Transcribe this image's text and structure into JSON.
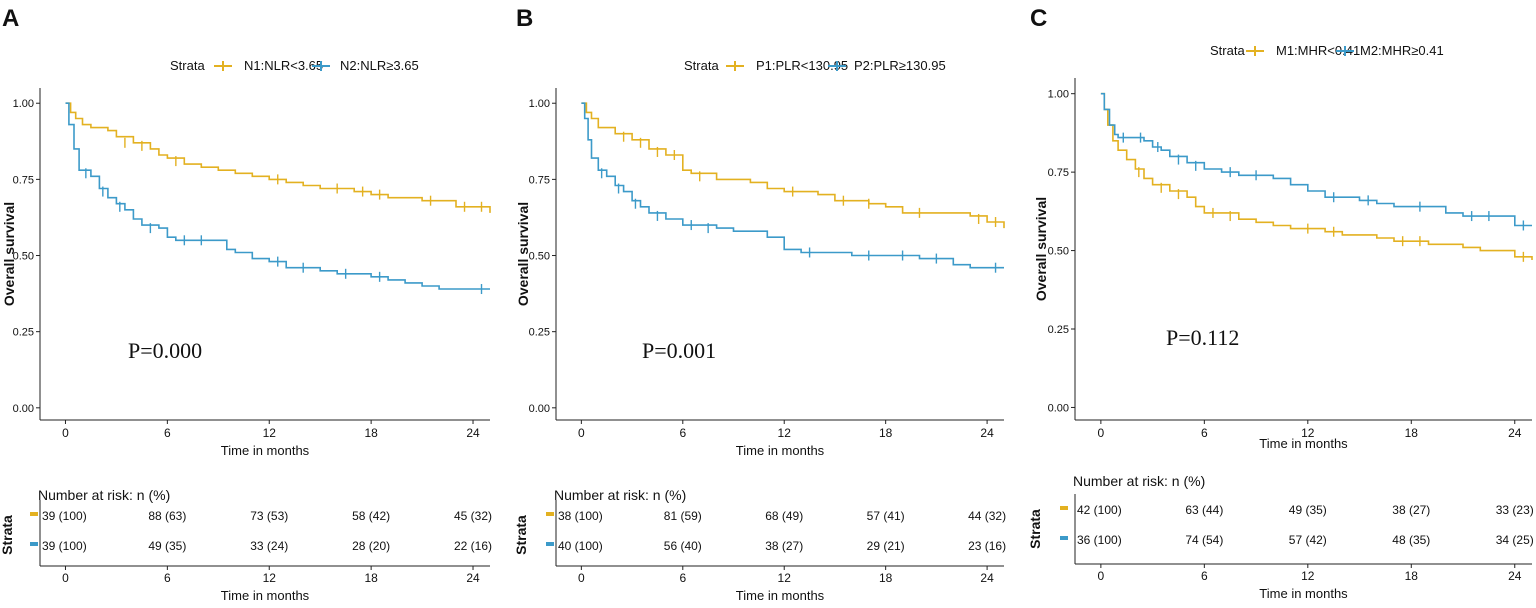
{
  "chart_data": [
    {
      "type": "line",
      "panel_label": "A",
      "title": "",
      "xlabel": "Time in months",
      "ylabel": "Overall survival",
      "xlim": [
        -1.5,
        25
      ],
      "ylim": [
        -0.04,
        1.05
      ],
      "x_ticks": [
        "0",
        "6",
        "12",
        "18",
        "24"
      ],
      "y_ticks": [
        "0.00",
        "0.25",
        "0.50",
        "0.75",
        "1.00"
      ],
      "legend_title": "Strata",
      "annotation": "P=0.000",
      "colors": {
        "series1": "#E3B121",
        "series2": "#3C9AC9"
      },
      "series": [
        {
          "name": "N1:NLR<3.65",
          "points": [
            [
              0,
              1.0
            ],
            [
              0.3,
              0.97
            ],
            [
              0.6,
              0.95
            ],
            [
              1,
              0.93
            ],
            [
              1.5,
              0.92
            ],
            [
              2.5,
              0.91
            ],
            [
              3,
              0.89
            ],
            [
              4,
              0.87
            ],
            [
              5,
              0.85
            ],
            [
              5.5,
              0.83
            ],
            [
              6,
              0.82
            ],
            [
              7,
              0.8
            ],
            [
              8,
              0.79
            ],
            [
              9,
              0.78
            ],
            [
              10,
              0.77
            ],
            [
              11,
              0.76
            ],
            [
              12,
              0.75
            ],
            [
              13,
              0.74
            ],
            [
              14,
              0.73
            ],
            [
              15,
              0.72
            ],
            [
              17,
              0.71
            ],
            [
              18,
              0.7
            ],
            [
              19,
              0.69
            ],
            [
              21,
              0.68
            ],
            [
              22,
              0.68
            ],
            [
              23,
              0.66
            ],
            [
              24,
              0.66
            ],
            [
              25,
              0.64
            ]
          ],
          "censors": [
            [
              3.5,
              0.87
            ],
            [
              4.5,
              0.86
            ],
            [
              6.5,
              0.81
            ],
            [
              12.5,
              0.75
            ],
            [
              16,
              0.72
            ],
            [
              17.5,
              0.71
            ],
            [
              18.5,
              0.7
            ],
            [
              21.5,
              0.68
            ],
            [
              23.5,
              0.66
            ],
            [
              24.5,
              0.66
            ]
          ]
        },
        {
          "name": "N2:NLR≥3.65",
          "points": [
            [
              0,
              1.0
            ],
            [
              0.2,
              0.93
            ],
            [
              0.5,
              0.85
            ],
            [
              0.8,
              0.78
            ],
            [
              1.5,
              0.76
            ],
            [
              2,
              0.72
            ],
            [
              2.5,
              0.69
            ],
            [
              3,
              0.67
            ],
            [
              3.5,
              0.65
            ],
            [
              4,
              0.62
            ],
            [
              4.5,
              0.6
            ],
            [
              5.5,
              0.59
            ],
            [
              6,
              0.56
            ],
            [
              6.5,
              0.55
            ],
            [
              9.5,
              0.52
            ],
            [
              10,
              0.51
            ],
            [
              11,
              0.49
            ],
            [
              12,
              0.48
            ],
            [
              13,
              0.46
            ],
            [
              15,
              0.45
            ],
            [
              16,
              0.44
            ],
            [
              18,
              0.43
            ],
            [
              19,
              0.42
            ],
            [
              20,
              0.41
            ],
            [
              21,
              0.4
            ],
            [
              22,
              0.39
            ],
            [
              25,
              0.39
            ]
          ],
          "censors": [
            [
              1.2,
              0.77
            ],
            [
              2.2,
              0.71
            ],
            [
              3.2,
              0.66
            ],
            [
              5,
              0.59
            ],
            [
              7,
              0.55
            ],
            [
              8,
              0.55
            ],
            [
              12.5,
              0.48
            ],
            [
              14,
              0.46
            ],
            [
              16.5,
              0.44
            ],
            [
              18.5,
              0.43
            ],
            [
              24.5,
              0.39
            ]
          ]
        }
      ],
      "risk_table": {
        "title": "Number at risk: n (%)",
        "side_label": "Strata",
        "rows": [
          [
            "39 (100)",
            "88 (63)",
            "73 (53)",
            "58 (42)",
            "45 (32)"
          ],
          [
            "39 (100)",
            "49 (35)",
            "33 (24)",
            "28 (20)",
            "22 (16)"
          ]
        ],
        "xlabel": "Time in months",
        "x_ticks": [
          "0",
          "6",
          "12",
          "18",
          "24"
        ]
      }
    },
    {
      "type": "line",
      "panel_label": "B",
      "title": "",
      "xlabel": "Time in months",
      "ylabel": "Overall survival",
      "xlim": [
        -1.5,
        25
      ],
      "ylim": [
        -0.04,
        1.05
      ],
      "x_ticks": [
        "0",
        "6",
        "12",
        "18",
        "24"
      ],
      "y_ticks": [
        "0.00",
        "0.25",
        "0.50",
        "0.75",
        "1.00"
      ],
      "legend_title": "Strata",
      "annotation": "P=0.001",
      "colors": {
        "series1": "#E3B121",
        "series2": "#3C9AC9"
      },
      "series": [
        {
          "name": "P1:PLR<130.95",
          "points": [
            [
              0,
              1.0
            ],
            [
              0.3,
              0.97
            ],
            [
              0.6,
              0.95
            ],
            [
              1,
              0.92
            ],
            [
              2,
              0.9
            ],
            [
              3,
              0.88
            ],
            [
              4,
              0.85
            ],
            [
              5,
              0.83
            ],
            [
              6,
              0.78
            ],
            [
              6.5,
              0.77
            ],
            [
              8,
              0.75
            ],
            [
              10,
              0.74
            ],
            [
              11,
              0.72
            ],
            [
              12,
              0.71
            ],
            [
              14,
              0.7
            ],
            [
              15,
              0.68
            ],
            [
              17,
              0.67
            ],
            [
              18,
              0.66
            ],
            [
              19,
              0.64
            ],
            [
              22,
              0.64
            ],
            [
              23,
              0.63
            ],
            [
              24,
              0.61
            ],
            [
              25,
              0.59
            ]
          ],
          "censors": [
            [
              2.5,
              0.89
            ],
            [
              3.5,
              0.87
            ],
            [
              4.5,
              0.84
            ],
            [
              5.5,
              0.83
            ],
            [
              7,
              0.76
            ],
            [
              12.5,
              0.71
            ],
            [
              15.5,
              0.68
            ],
            [
              17,
              0.67
            ],
            [
              20,
              0.64
            ],
            [
              23.5,
              0.62
            ],
            [
              24.5,
              0.61
            ]
          ]
        },
        {
          "name": "P2:PLR≥130.95",
          "points": [
            [
              0,
              1.0
            ],
            [
              0.2,
              0.95
            ],
            [
              0.4,
              0.88
            ],
            [
              0.6,
              0.82
            ],
            [
              1,
              0.78
            ],
            [
              1.5,
              0.76
            ],
            [
              2,
              0.73
            ],
            [
              2.5,
              0.71
            ],
            [
              3,
              0.68
            ],
            [
              3.5,
              0.66
            ],
            [
              4,
              0.64
            ],
            [
              5,
              0.62
            ],
            [
              6,
              0.6
            ],
            [
              8,
              0.59
            ],
            [
              9,
              0.58
            ],
            [
              11,
              0.56
            ],
            [
              12,
              0.52
            ],
            [
              13,
              0.51
            ],
            [
              15,
              0.51
            ],
            [
              16,
              0.5
            ],
            [
              18,
              0.5
            ],
            [
              20,
              0.49
            ],
            [
              22,
              0.47
            ],
            [
              23,
              0.46
            ],
            [
              25,
              0.46
            ]
          ],
          "censors": [
            [
              1.2,
              0.77
            ],
            [
              2.2,
              0.72
            ],
            [
              3.2,
              0.67
            ],
            [
              4.5,
              0.63
            ],
            [
              6.5,
              0.6
            ],
            [
              7.5,
              0.59
            ],
            [
              13.5,
              0.51
            ],
            [
              17,
              0.5
            ],
            [
              19,
              0.5
            ],
            [
              21,
              0.49
            ],
            [
              24.5,
              0.46
            ]
          ]
        }
      ],
      "risk_table": {
        "title": "Number at risk: n (%)",
        "side_label": "Strata",
        "rows": [
          [
            "38 (100)",
            "81 (59)",
            "68 (49)",
            "57 (41)",
            "44 (32)"
          ],
          [
            "40 (100)",
            "56 (40)",
            "38 (27)",
            "29 (21)",
            "23 (16)"
          ]
        ],
        "xlabel": "Time in months",
        "x_ticks": [
          "0",
          "6",
          "12",
          "18",
          "24"
        ]
      }
    },
    {
      "type": "line",
      "panel_label": "C",
      "title": "",
      "xlabel": "Time in months",
      "ylabel": "Overall survival",
      "xlim": [
        -1.5,
        25
      ],
      "ylim": [
        -0.04,
        1.05
      ],
      "x_ticks": [
        "0",
        "6",
        "12",
        "18",
        "24"
      ],
      "y_ticks": [
        "0.00",
        "0.25",
        "0.50",
        "0.75",
        "1.00"
      ],
      "legend_title": "Strata",
      "annotation": "P=0.112",
      "colors": {
        "series1": "#E3B121",
        "series2": "#3C9AC9"
      },
      "series": [
        {
          "name": "M1:MHR<0.41",
          "points": [
            [
              0,
              1.0
            ],
            [
              0.2,
              0.95
            ],
            [
              0.4,
              0.9
            ],
            [
              0.7,
              0.85
            ],
            [
              1,
              0.82
            ],
            [
              1.5,
              0.79
            ],
            [
              2,
              0.76
            ],
            [
              2.5,
              0.73
            ],
            [
              3,
              0.71
            ],
            [
              4,
              0.69
            ],
            [
              5,
              0.67
            ],
            [
              5.5,
              0.64
            ],
            [
              6,
              0.62
            ],
            [
              8,
              0.6
            ],
            [
              9,
              0.59
            ],
            [
              10,
              0.58
            ],
            [
              11,
              0.57
            ],
            [
              13,
              0.56
            ],
            [
              14,
              0.55
            ],
            [
              16,
              0.54
            ],
            [
              17,
              0.53
            ],
            [
              19,
              0.52
            ],
            [
              21,
              0.51
            ],
            [
              22,
              0.5
            ],
            [
              24,
              0.48
            ],
            [
              25,
              0.47
            ]
          ],
          "censors": [
            [
              2.2,
              0.75
            ],
            [
              3.5,
              0.7
            ],
            [
              4.5,
              0.68
            ],
            [
              6.5,
              0.62
            ],
            [
              7.5,
              0.61
            ],
            [
              12,
              0.57
            ],
            [
              13.5,
              0.56
            ],
            [
              17.5,
              0.53
            ],
            [
              18.5,
              0.53
            ],
            [
              24.5,
              0.48
            ]
          ]
        },
        {
          "name": "M2:MHR≥0.41",
          "points": [
            [
              0,
              1.0
            ],
            [
              0.2,
              0.95
            ],
            [
              0.5,
              0.9
            ],
            [
              0.8,
              0.87
            ],
            [
              1,
              0.86
            ],
            [
              2,
              0.86
            ],
            [
              2.5,
              0.85
            ],
            [
              3,
              0.83
            ],
            [
              3.5,
              0.82
            ],
            [
              4,
              0.8
            ],
            [
              5,
              0.78
            ],
            [
              6,
              0.76
            ],
            [
              7,
              0.75
            ],
            [
              8,
              0.74
            ],
            [
              10,
              0.73
            ],
            [
              11,
              0.71
            ],
            [
              12,
              0.69
            ],
            [
              13,
              0.67
            ],
            [
              15,
              0.66
            ],
            [
              16,
              0.65
            ],
            [
              17,
              0.64
            ],
            [
              19,
              0.64
            ],
            [
              20,
              0.62
            ],
            [
              21,
              0.61
            ],
            [
              23,
              0.61
            ],
            [
              24,
              0.58
            ],
            [
              25,
              0.58
            ]
          ],
          "censors": [
            [
              1.3,
              0.86
            ],
            [
              2.3,
              0.86
            ],
            [
              3.3,
              0.83
            ],
            [
              4.5,
              0.79
            ],
            [
              5.5,
              0.77
            ],
            [
              7.5,
              0.75
            ],
            [
              9,
              0.74
            ],
            [
              13.5,
              0.67
            ],
            [
              15.5,
              0.66
            ],
            [
              18.5,
              0.64
            ],
            [
              21.5,
              0.61
            ],
            [
              22.5,
              0.61
            ],
            [
              24.5,
              0.58
            ]
          ]
        }
      ],
      "risk_table": {
        "title": "Number at risk: n (%)",
        "side_label": "Strata",
        "rows": [
          [
            "42 (100)",
            "63 (44)",
            "49 (35)",
            "38 (27)",
            "33 (23)"
          ],
          [
            "36 (100)",
            "74 (54)",
            "57 (42)",
            "48 (35)",
            "34 (25)"
          ]
        ],
        "xlabel": "Time in months",
        "x_ticks": [
          "0",
          "6",
          "12",
          "18",
          "24"
        ]
      }
    }
  ]
}
